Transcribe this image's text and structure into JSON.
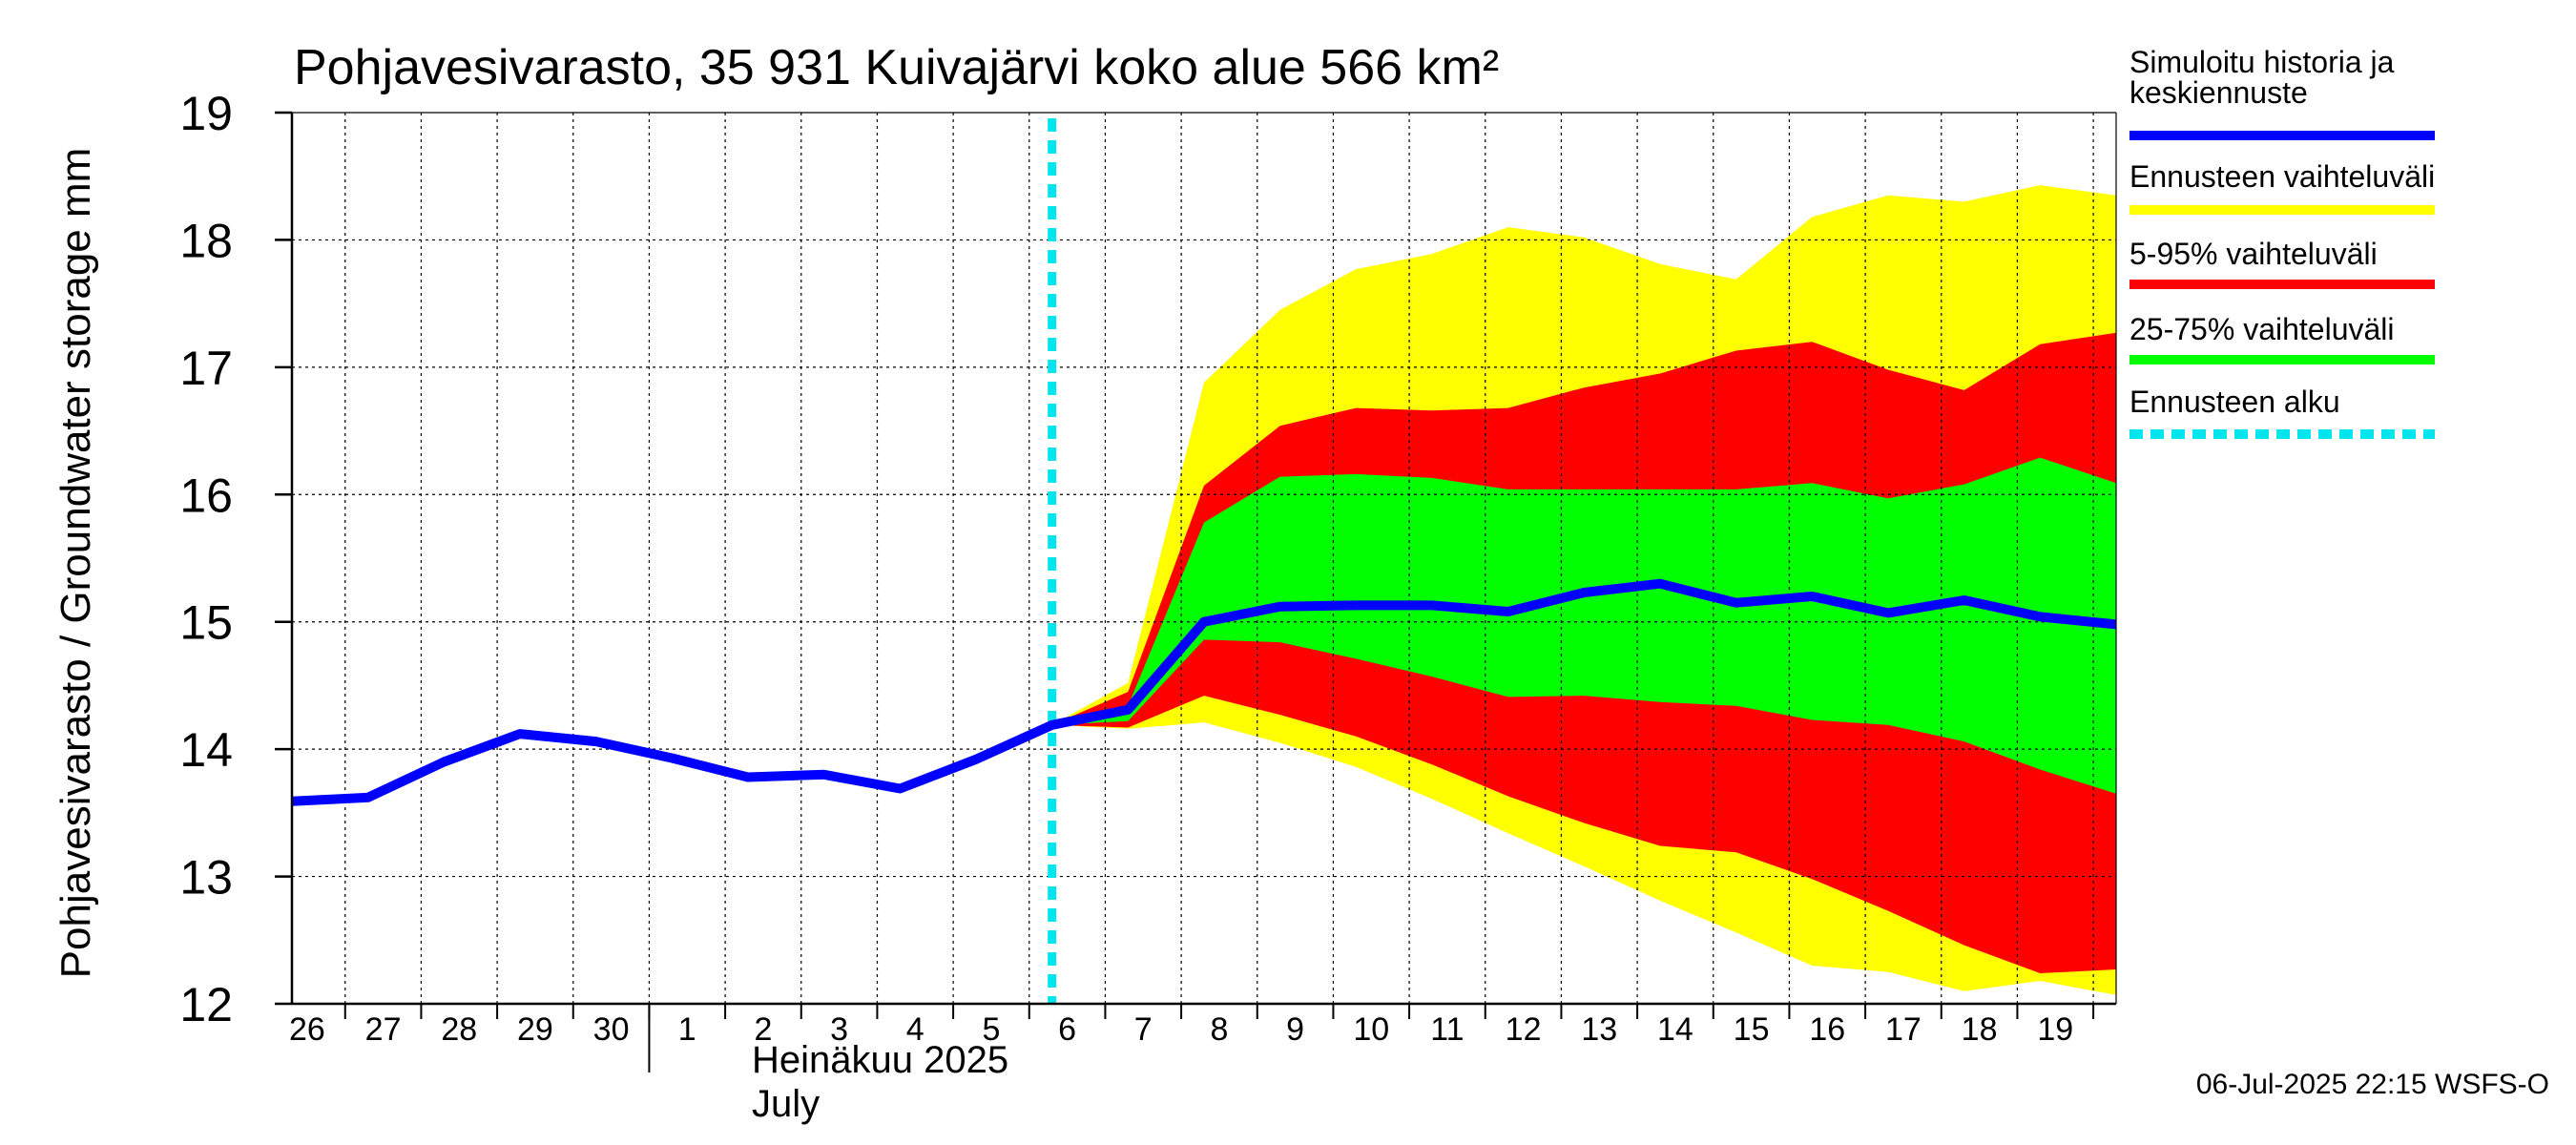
{
  "chart_data": {
    "type": "area",
    "title": "Pohjavesivarasto, 35 931 Kuivajärvi koko alue 566 km²",
    "ylabel": "Pohjavesivarasto / Groundwater storage   mm",
    "ylim": [
      12,
      19
    ],
    "yticks": [
      12,
      13,
      14,
      15,
      16,
      17,
      18,
      19
    ],
    "xlim": [
      -4.2,
      19.8
    ],
    "x_tick_labels": [
      {
        "day": -4,
        "label": "26"
      },
      {
        "day": -3,
        "label": "27"
      },
      {
        "day": -2,
        "label": "28"
      },
      {
        "day": -1,
        "label": "29"
      },
      {
        "day": 0,
        "label": "30"
      },
      {
        "day": 1,
        "label": "1"
      },
      {
        "day": 2,
        "label": "2"
      },
      {
        "day": 3,
        "label": "3"
      },
      {
        "day": 4,
        "label": "4"
      },
      {
        "day": 5,
        "label": "5"
      },
      {
        "day": 6,
        "label": "6"
      },
      {
        "day": 7,
        "label": "7"
      },
      {
        "day": 8,
        "label": "8"
      },
      {
        "day": 9,
        "label": "9"
      },
      {
        "day": 10,
        "label": "10"
      },
      {
        "day": 11,
        "label": "11"
      },
      {
        "day": 12,
        "label": "12"
      },
      {
        "day": 13,
        "label": "13"
      },
      {
        "day": 14,
        "label": "14"
      },
      {
        "day": 15,
        "label": "15"
      },
      {
        "day": 16,
        "label": "16"
      },
      {
        "day": 17,
        "label": "17"
      },
      {
        "day": 18,
        "label": "18"
      },
      {
        "day": 19,
        "label": "19"
      }
    ],
    "month_label_fi": "Heinäkuu  2025",
    "month_label_en": "July",
    "forecast_start": 5.8,
    "grid": true,
    "legend_position": "right",
    "colors": {
      "history": "#0000ff",
      "full_range": "#ffff00",
      "range_5_95": "#ff0000",
      "range_25_75": "#00ff00",
      "forecast_start": "#00e5ee"
    },
    "series": [
      {
        "key": "history",
        "name": "Simuloitu historia ja keskiennuste",
        "x": [
          -4.2,
          -3.2,
          -2.2,
          -1.2,
          -0.2,
          0.8,
          1.8,
          2.8,
          3.8,
          4.8,
          5.8,
          6.8,
          7.8,
          8.8,
          9.8,
          10.8,
          11.8,
          12.8,
          13.8,
          14.8,
          15.8,
          16.8,
          17.8,
          18.8,
          19.8
        ],
        "values": [
          13.59,
          13.62,
          13.9,
          14.12,
          14.06,
          13.93,
          13.78,
          13.8,
          13.69,
          13.92,
          14.19,
          14.31,
          15.0,
          15.12,
          15.13,
          15.13,
          15.08,
          15.23,
          15.3,
          15.15,
          15.2,
          15.07,
          15.17,
          15.04,
          14.98
        ]
      },
      {
        "key": "full_range",
        "name": "Ennusteen vaihteluväli",
        "x": [
          5.8,
          6.8,
          7.8,
          8.8,
          9.8,
          10.8,
          11.8,
          12.8,
          13.8,
          14.8,
          15.8,
          16.8,
          17.8,
          18.8,
          19.8
        ],
        "upper": [
          14.19,
          14.52,
          16.88,
          17.45,
          17.77,
          17.89,
          18.1,
          18.02,
          17.81,
          17.69,
          18.18,
          18.35,
          18.3,
          18.43,
          18.35
        ],
        "lower": [
          14.19,
          14.16,
          14.21,
          14.05,
          13.86,
          13.61,
          13.34,
          13.08,
          12.81,
          12.56,
          12.3,
          12.25,
          12.1,
          12.18,
          12.07
        ]
      },
      {
        "key": "range_5_95",
        "name": "5-95% vaihteluväli",
        "x": [
          5.8,
          6.8,
          7.8,
          8.8,
          9.8,
          10.8,
          11.8,
          12.8,
          13.8,
          14.8,
          15.8,
          16.8,
          17.8,
          18.8,
          19.8
        ],
        "upper": [
          14.19,
          14.45,
          16.07,
          16.54,
          16.68,
          16.66,
          16.68,
          16.84,
          16.95,
          17.13,
          17.2,
          16.98,
          16.82,
          17.18,
          17.27
        ],
        "lower": [
          14.19,
          14.17,
          14.42,
          14.27,
          14.1,
          13.88,
          13.63,
          13.42,
          13.24,
          13.19,
          12.98,
          12.73,
          12.46,
          12.24,
          12.27
        ]
      },
      {
        "key": "range_25_75",
        "name": "25-75% vaihteluväli",
        "x": [
          5.8,
          6.8,
          7.8,
          8.8,
          9.8,
          10.8,
          11.8,
          12.8,
          13.8,
          14.8,
          15.8,
          16.8,
          17.8,
          18.8,
          19.8
        ],
        "upper": [
          14.19,
          14.34,
          15.78,
          16.14,
          16.16,
          16.13,
          16.04,
          16.04,
          16.04,
          16.04,
          16.09,
          15.97,
          16.08,
          16.29,
          16.09
        ],
        "lower": [
          14.19,
          14.22,
          14.86,
          14.84,
          14.71,
          14.57,
          14.41,
          14.42,
          14.37,
          14.34,
          14.23,
          14.19,
          14.06,
          13.84,
          13.65
        ]
      }
    ],
    "legend": [
      {
        "key": "history",
        "text": [
          "Simuloitu historia ja",
          "keskiennuste"
        ],
        "style": "solid"
      },
      {
        "key": "full_range",
        "text": [
          "Ennusteen vaihteluväli"
        ],
        "style": "solid"
      },
      {
        "key": "range_5_95",
        "text": [
          "5-95% vaihteluväli"
        ],
        "style": "solid"
      },
      {
        "key": "range_25_75",
        "text": [
          "25-75% vaihteluväli"
        ],
        "style": "solid"
      },
      {
        "key": "forecast_start",
        "text": [
          "Ennusteen alku"
        ],
        "style": "dashed"
      }
    ],
    "timestamp": "06-Jul-2025 22:15 WSFS-O"
  }
}
